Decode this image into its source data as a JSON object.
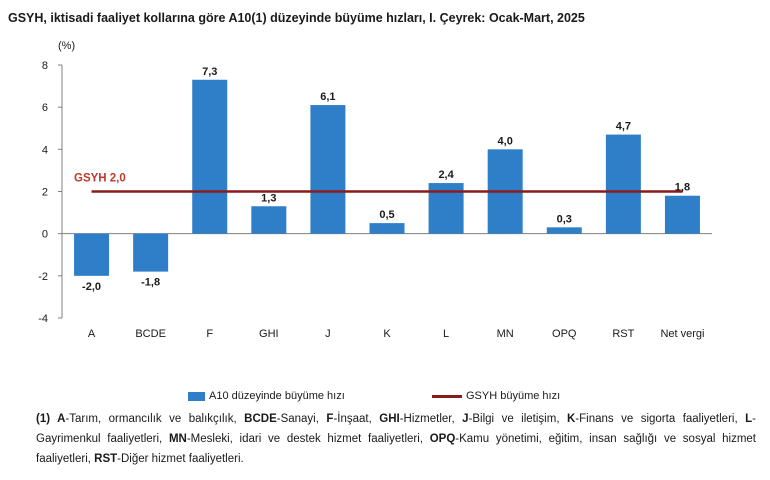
{
  "header": {
    "title": "GSYH, iktisadi faaliyet kollarına göre A10(1) düzeyinde büyüme hızları, I. Çeyrek: Ocak-Mart, 2025",
    "unit": "(%)"
  },
  "legend": {
    "bar_label": "A10 düzeyinde büyüme hızı",
    "line_label": "GSYH büyüme hızı"
  },
  "footnote": {
    "prefix": "(1)",
    "items": [
      {
        "code": "A",
        "text": "-Tarım, ormancılık ve balıkçılık, "
      },
      {
        "code": "BCDE",
        "text": "-Sanayi, "
      },
      {
        "code": "F",
        "text": "-İnşaat, "
      },
      {
        "code": "GHI",
        "text": "-Hizmetler, "
      },
      {
        "code": "J",
        "text": "-Bilgi ve iletişim, "
      },
      {
        "code": "K",
        "text": "-Finans ve sigorta faaliyetleri, "
      },
      {
        "code": "L",
        "text": "-Gayrimenkul faaliyetleri, "
      },
      {
        "code": "MN",
        "text": "-Mesleki, idari ve destek hizmet faaliyetleri, "
      },
      {
        "code": "OPQ",
        "text": "-Kamu yönetimi, eğitim, insan sağlığı ve sosyal hizmet faaliyetleri, "
      },
      {
        "code": "RST",
        "text": "-Diğer hizmet faaliyetleri."
      }
    ]
  },
  "colors": {
    "bar": "#2e7fc8",
    "line": "#8b1a1a",
    "line_label": "#c0392b",
    "axis": "#808080"
  },
  "chart_data": {
    "type": "bar",
    "categories": [
      "A",
      "BCDE",
      "F",
      "GHI",
      "J",
      "K",
      "L",
      "MN",
      "OPQ",
      "RST",
      "Net vergi"
    ],
    "series": [
      {
        "name": "A10 düzeyinde büyüme hızı",
        "values": [
          -2.0,
          -1.8,
          7.3,
          1.3,
          6.1,
          0.5,
          2.4,
          4.0,
          0.3,
          4.7,
          1.8
        ],
        "data_labels": [
          "-2,0",
          "-1,8",
          "7,3",
          "1,3",
          "6,1",
          "0,5",
          "2,4",
          "4,0",
          "0,3",
          "4,7",
          "1,8"
        ]
      }
    ],
    "reference_line": {
      "name": "GSYH büyüme hızı",
      "value": 2.0,
      "label": "GSYH 2,0"
    },
    "ylim": [
      -4,
      8
    ],
    "yticks": [
      -4,
      -2,
      0,
      2,
      4,
      6,
      8
    ],
    "ytick_labels": [
      "-4",
      "-2",
      "0",
      "2",
      "4",
      "6",
      "8"
    ],
    "ylabel": "(%)",
    "xlabel": "",
    "grid": false,
    "legend_position": "bottom"
  }
}
